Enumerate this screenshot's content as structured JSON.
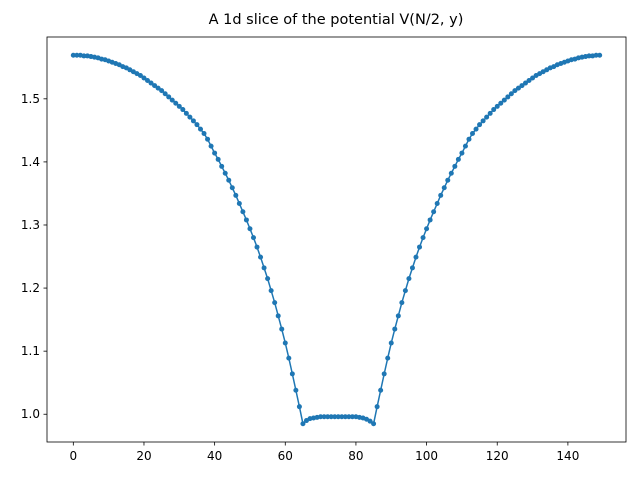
{
  "chart_data": {
    "type": "line",
    "title": "A 1d slice of the potential V(N/2, y)",
    "x": [
      0,
      1,
      2,
      3,
      4,
      5,
      6,
      7,
      8,
      9,
      10,
      11,
      12,
      13,
      14,
      15,
      16,
      17,
      18,
      19,
      20,
      21,
      22,
      23,
      24,
      25,
      26,
      27,
      28,
      29,
      30,
      31,
      32,
      33,
      34,
      35,
      36,
      37,
      38,
      39,
      40,
      41,
      42,
      43,
      44,
      45,
      46,
      47,
      48,
      49,
      50,
      51,
      52,
      53,
      54,
      55,
      56,
      57,
      58,
      59,
      60,
      61,
      62,
      63,
      64,
      65,
      66,
      67,
      68,
      69,
      70,
      71,
      72,
      73,
      74,
      75,
      76,
      77,
      78,
      79,
      80,
      81,
      82,
      83,
      84,
      85,
      86,
      87,
      88,
      89,
      90,
      91,
      92,
      93,
      94,
      95,
      96,
      97,
      98,
      99,
      100,
      101,
      102,
      103,
      104,
      105,
      106,
      107,
      108,
      109,
      110,
      111,
      112,
      113,
      114,
      115,
      116,
      117,
      118,
      119,
      120,
      121,
      122,
      123,
      124,
      125,
      126,
      127,
      128,
      129,
      130,
      131,
      132,
      133,
      134,
      135,
      136,
      137,
      138,
      139,
      140,
      141,
      142,
      143,
      144,
      145,
      146,
      147,
      148,
      149
    ],
    "series": [
      {
        "color": "#1f77b4",
        "values": [
          1.569,
          1.569,
          1.569,
          1.568,
          1.568,
          1.567,
          1.566,
          1.565,
          1.563,
          1.562,
          1.56,
          1.558,
          1.556,
          1.554,
          1.551,
          1.549,
          1.546,
          1.543,
          1.54,
          1.537,
          1.533,
          1.529,
          1.525,
          1.521,
          1.517,
          1.513,
          1.508,
          1.503,
          1.498,
          1.493,
          1.488,
          1.483,
          1.477,
          1.471,
          1.465,
          1.459,
          1.452,
          1.445,
          1.436,
          1.425,
          1.414,
          1.404,
          1.393,
          1.382,
          1.371,
          1.359,
          1.347,
          1.334,
          1.321,
          1.308,
          1.294,
          1.28,
          1.265,
          1.249,
          1.232,
          1.215,
          1.196,
          1.177,
          1.156,
          1.135,
          1.113,
          1.089,
          1.064,
          1.038,
          1.012,
          0.985,
          0.99,
          0.993,
          0.994,
          0.995,
          0.996,
          0.996,
          0.996,
          0.996,
          0.996,
          0.996,
          0.996,
          0.996,
          0.996,
          0.996,
          0.996,
          0.995,
          0.994,
          0.992,
          0.989,
          0.985,
          1.012,
          1.038,
          1.064,
          1.089,
          1.113,
          1.135,
          1.156,
          1.177,
          1.196,
          1.215,
          1.232,
          1.249,
          1.265,
          1.28,
          1.294,
          1.308,
          1.321,
          1.334,
          1.347,
          1.359,
          1.371,
          1.382,
          1.393,
          1.404,
          1.414,
          1.425,
          1.436,
          1.445,
          1.452,
          1.459,
          1.465,
          1.471,
          1.477,
          1.483,
          1.488,
          1.493,
          1.498,
          1.503,
          1.508,
          1.513,
          1.517,
          1.521,
          1.525,
          1.529,
          1.533,
          1.537,
          1.54,
          1.543,
          1.546,
          1.549,
          1.551,
          1.554,
          1.556,
          1.558,
          1.56,
          1.562,
          1.563,
          1.565,
          1.566,
          1.567,
          1.568,
          1.568,
          1.569,
          1.569
        ]
      }
    ],
    "xlim": [
      -7.45,
      156.45
    ],
    "xticks": [
      0,
      20,
      40,
      60,
      80,
      100,
      120,
      140
    ],
    "ylim": [
      0.956,
      1.598
    ],
    "yticks": [
      {
        "value": 1,
        "label": "1.0"
      },
      1.1,
      1.2,
      1.3,
      1.4,
      1.5
    ],
    "grid": false
  }
}
